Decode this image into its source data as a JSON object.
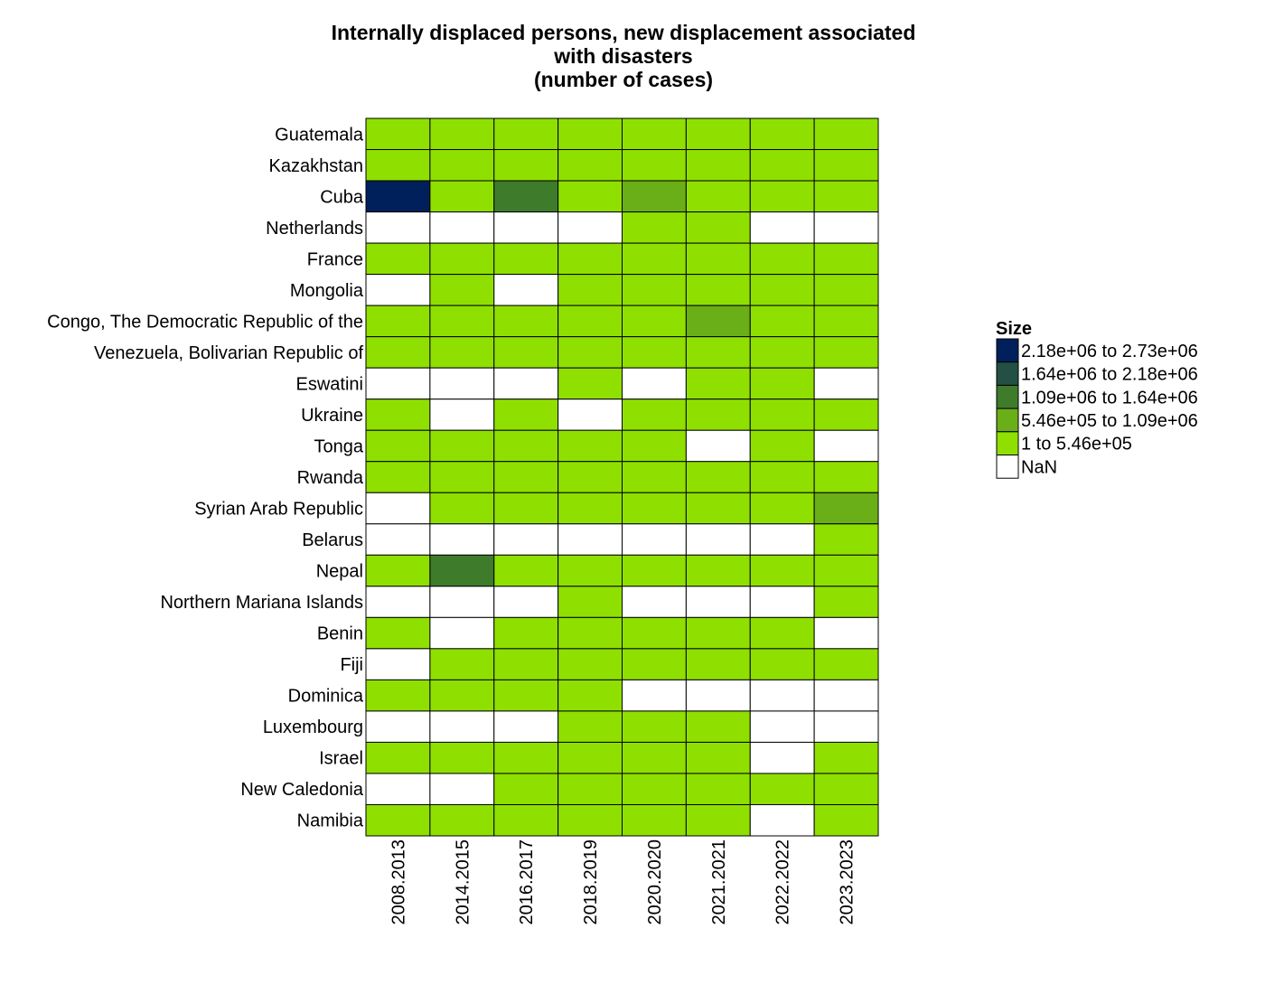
{
  "chart_data": {
    "type": "heatmap",
    "title_lines": [
      "Internally displaced persons, new displacement associated",
      "with disasters",
      "(number of cases)"
    ],
    "x_categories": [
      "2008.2013",
      "2014.2015",
      "2016.2017",
      "2018.2019",
      "2020.2020",
      "2021.2021",
      "2022.2022",
      "2023.2023"
    ],
    "y_categories": [
      "Guatemala",
      "Kazakhstan",
      "Cuba",
      "Netherlands",
      "France",
      "Mongolia",
      "Congo, The Democratic Republic of the",
      "Venezuela, Bolivarian Republic of",
      "Eswatini",
      "Ukraine",
      "Tonga",
      "Rwanda",
      "Syrian Arab Republic",
      "Belarus",
      "Nepal",
      "Northern Mariana Islands",
      "Benin",
      "Fiji",
      "Dominica",
      "Luxembourg",
      "Israel",
      "New Caledonia",
      "Namibia"
    ],
    "cells": [
      [
        0,
        0,
        0,
        0,
        0,
        0,
        0,
        0
      ],
      [
        0,
        0,
        0,
        0,
        0,
        0,
        0,
        0
      ],
      [
        4,
        0,
        2,
        0,
        1,
        0,
        0,
        0
      ],
      [
        null,
        null,
        null,
        null,
        0,
        0,
        null,
        null
      ],
      [
        0,
        0,
        0,
        0,
        0,
        0,
        0,
        0
      ],
      [
        null,
        0,
        null,
        0,
        0,
        0,
        0,
        0
      ],
      [
        0,
        0,
        0,
        0,
        0,
        1,
        0,
        0
      ],
      [
        0,
        0,
        0,
        0,
        0,
        0,
        0,
        0
      ],
      [
        null,
        null,
        null,
        0,
        null,
        0,
        0,
        null
      ],
      [
        0,
        null,
        0,
        null,
        0,
        0,
        0,
        0
      ],
      [
        0,
        0,
        0,
        0,
        0,
        null,
        0,
        null
      ],
      [
        0,
        0,
        0,
        0,
        0,
        0,
        0,
        0
      ],
      [
        null,
        0,
        0,
        0,
        0,
        0,
        0,
        1
      ],
      [
        null,
        null,
        null,
        null,
        null,
        null,
        null,
        0
      ],
      [
        0,
        2,
        0,
        0,
        0,
        0,
        0,
        0
      ],
      [
        null,
        null,
        null,
        0,
        null,
        null,
        null,
        0
      ],
      [
        0,
        null,
        0,
        0,
        0,
        0,
        0,
        null
      ],
      [
        null,
        0,
        0,
        0,
        0,
        0,
        0,
        0
      ],
      [
        0,
        0,
        0,
        0,
        null,
        null,
        null,
        null
      ],
      [
        null,
        null,
        null,
        0,
        0,
        0,
        null,
        null
      ],
      [
        0,
        0,
        0,
        0,
        0,
        0,
        null,
        0
      ],
      [
        null,
        null,
        0,
        0,
        0,
        0,
        0,
        0
      ],
      [
        0,
        0,
        0,
        0,
        0,
        0,
        null,
        0
      ]
    ],
    "legend": {
      "title": "Size",
      "placement": "right",
      "bins": [
        {
          "from": "2.18e+06",
          "to": "2.73e+06",
          "color": "#00205B",
          "class_index": 4
        },
        {
          "from": "1.64e+06",
          "to": "2.18e+06",
          "color": "#244F44",
          "class_index": 3
        },
        {
          "from": "1.09e+06",
          "to": "1.64e+06",
          "color": "#3E7B2A",
          "class_index": 2
        },
        {
          "from": "5.46e+05",
          "to": "1.09e+06",
          "color": "#6AAE18",
          "class_index": 1
        },
        {
          "from": "1",
          "to": "5.46e+05",
          "color": "#8FE000",
          "class_index": 0
        }
      ],
      "nan_label": "NaN",
      "nan_color": "#FFFFFF",
      "range_separator": "to"
    },
    "grid": true
  }
}
